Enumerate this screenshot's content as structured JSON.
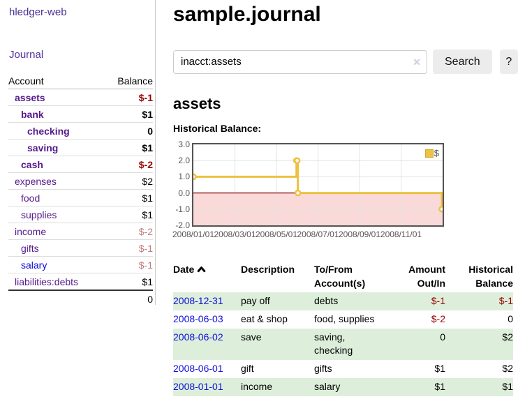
{
  "brand": "hledger-web",
  "nav": {
    "journal": "Journal"
  },
  "sidebar": {
    "header": {
      "account": "Account",
      "balance": "Balance"
    },
    "accounts": [
      {
        "name": "assets",
        "balance": "$-1"
      },
      {
        "name": "bank",
        "balance": "$1"
      },
      {
        "name": "checking",
        "balance": "0"
      },
      {
        "name": "saving",
        "balance": "$1"
      },
      {
        "name": "cash",
        "balance": "$-2"
      },
      {
        "name": "expenses",
        "balance": "$2"
      },
      {
        "name": "food",
        "balance": "$1"
      },
      {
        "name": "supplies",
        "balance": "$1"
      },
      {
        "name": "income",
        "balance": "$-2"
      },
      {
        "name": "gifts",
        "balance": "$-1"
      },
      {
        "name": "salary",
        "balance": "$-1"
      },
      {
        "name": "liabilities:debts",
        "balance": "$1"
      }
    ],
    "total": "0"
  },
  "main": {
    "title": "sample.journal",
    "search": {
      "value": "inacct:assets",
      "clear_icon": "✕",
      "search_label": "Search",
      "help_label": "?"
    },
    "account_heading": "assets",
    "chart_heading": "Historical Balance:"
  },
  "chart_data": {
    "type": "line",
    "title": "Historical Balance:",
    "step": true,
    "series": [
      {
        "name": "$",
        "color": "#EDC240",
        "points": [
          {
            "date": "2008-01-01",
            "value": 1
          },
          {
            "date": "2008-06-01",
            "value": 2
          },
          {
            "date": "2008-06-02",
            "value": 2
          },
          {
            "date": "2008-06-03",
            "value": 0
          },
          {
            "date": "2008-12-31",
            "value": -1
          }
        ]
      }
    ],
    "ylim": [
      -2,
      3
    ],
    "y_ticks": [
      "3.0",
      "2.0",
      "1.0",
      "0.0",
      "-1.0",
      "-2.0"
    ],
    "x_ticks": [
      "2008/01/01",
      "2008/03/01",
      "2008/05/01",
      "2008/07/01",
      "2008/09/01",
      "2008/11/01"
    ],
    "grid": true,
    "legend_position": "top-right",
    "negative_region_color": "#fad9d9",
    "zero_line_color": "#8b0000",
    "grid_color": "#e3e3e3"
  },
  "table": {
    "headers": {
      "date": "Date",
      "description": "Description",
      "accounts": "To/From Account(s)",
      "amount": "Amount Out/In",
      "balance": "Historical Balance"
    },
    "rows": [
      {
        "date": "2008-12-31",
        "description": "pay off",
        "accounts": "debts",
        "amount": "$-1",
        "balance": "$-1"
      },
      {
        "date": "2008-06-03",
        "description": "eat & shop",
        "accounts": "food, supplies",
        "amount": "$-2",
        "balance": "0"
      },
      {
        "date": "2008-06-02",
        "description": "save",
        "accounts": "saving, checking",
        "amount": "0",
        "balance": "$2"
      },
      {
        "date": "2008-06-01",
        "description": "gift",
        "accounts": "gifts",
        "amount": "$1",
        "balance": "$2"
      },
      {
        "date": "2008-01-01",
        "description": "income",
        "accounts": "salary",
        "amount": "$1",
        "balance": "$1"
      }
    ]
  }
}
